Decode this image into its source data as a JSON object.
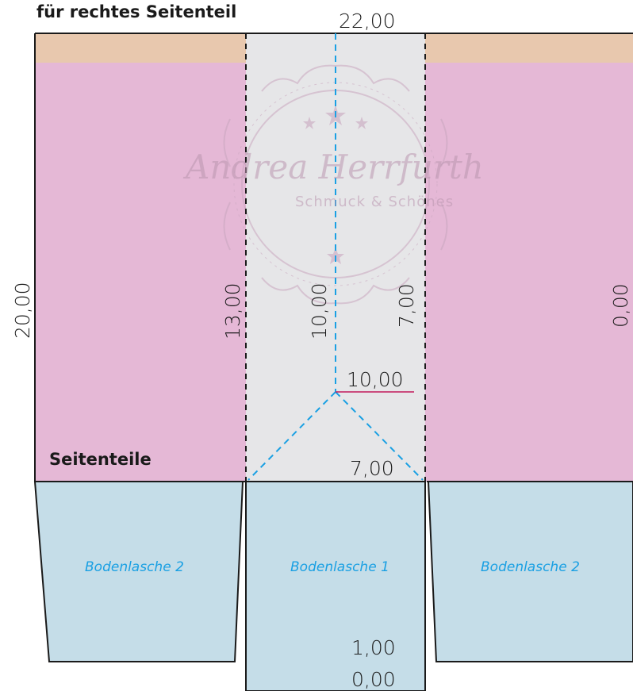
{
  "header": {
    "title": "für rechtes Seitenteil"
  },
  "section": {
    "label": "Seitenteile"
  },
  "dimensions": {
    "top_width": "22,00",
    "left_height": "20,00",
    "fold_left": "13,00",
    "center": "10,00",
    "fold_right": "7,00",
    "right_edge": "0,00",
    "diagonal_top": "10,00",
    "diagonal_bottom": "7,00",
    "bottom_upper": "1,00",
    "bottom_lower": "0,00"
  },
  "flaps": {
    "left": "Bodenlasche 2",
    "center": "Bodenlasche 1",
    "right": "Bodenlasche 2"
  },
  "watermark": {
    "name": "Andrea Herrfurth",
    "tagline": "Schmuck & Schönes"
  },
  "colors": {
    "side_panel": "#e5b8d6",
    "top_strip": "#e8c8ae",
    "center_panel": "#e6e6e8",
    "bottom_flap": "#c5dde8",
    "fold_line": "#1aa0e3",
    "accent_line": "#c2185b"
  }
}
